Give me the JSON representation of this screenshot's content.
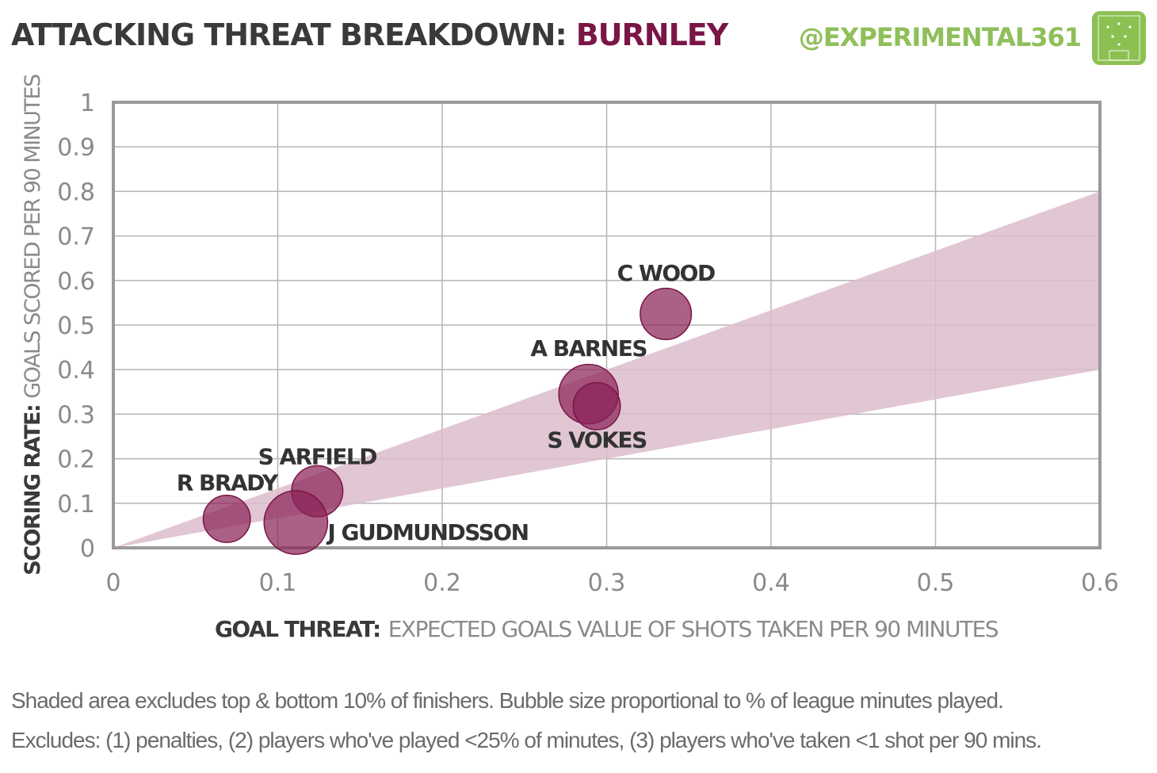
{
  "header": {
    "title_prefix": "ATTACKING THREAT BREAKDOWN:",
    "team": "BURNLEY",
    "handle": "@EXPERIMENTAL361",
    "logo_icon": "pitch-logo-icon"
  },
  "colors": {
    "accent": "#7a1547",
    "bubble": "#8b2257",
    "band": "#dcbccb",
    "grid": "#b5b5b5",
    "axis_text": "#8a8a8a",
    "label_text": "#333333",
    "logo": "#8cc152"
  },
  "chart_data": {
    "type": "scatter",
    "xlim": [
      0,
      0.6
    ],
    "ylim": [
      0,
      1
    ],
    "x_ticks": [
      "0",
      "0.1",
      "0.2",
      "0.3",
      "0.4",
      "0.5",
      "0.6"
    ],
    "y_ticks": [
      "0",
      "0.1",
      "0.2",
      "0.3",
      "0.4",
      "0.5",
      "0.6",
      "0.7",
      "0.8",
      "0.9",
      "1"
    ],
    "xlabel_bold": "GOAL THREAT:",
    "xlabel_rest": "EXPECTED GOALS VALUE OF SHOTS TAKEN PER 90 MINUTES",
    "ylabel_bold": "SCORING RATE:",
    "ylabel_rest": "GOALS SCORED PER 90 MINUTES",
    "grid": true,
    "band": {
      "lower_at_xmax": 0.4,
      "upper_at_xmax": 0.8
    },
    "points": [
      {
        "name": "C WOOD",
        "x": 0.336,
        "y": 0.525,
        "size": 0.55
      },
      {
        "name": "A BARNES",
        "x": 0.289,
        "y": 0.345,
        "size": 0.75
      },
      {
        "name": "S VOKES",
        "x": 0.294,
        "y": 0.318,
        "size": 0.45
      },
      {
        "name": "S ARFIELD",
        "x": 0.124,
        "y": 0.127,
        "size": 0.55
      },
      {
        "name": "R BRADY",
        "x": 0.069,
        "y": 0.065,
        "size": 0.45
      },
      {
        "name": "J GUDMUNDSSON",
        "x": 0.111,
        "y": 0.057,
        "size": 0.85
      }
    ]
  },
  "footnote": {
    "line1": "Shaded area excludes top & bottom 10% of finishers. Bubble size proportional to % of league minutes played.",
    "line2": "Excludes: (1) penalties, (2) players who've played <25% of minutes, (3) players who've taken <1 shot per 90 mins."
  }
}
